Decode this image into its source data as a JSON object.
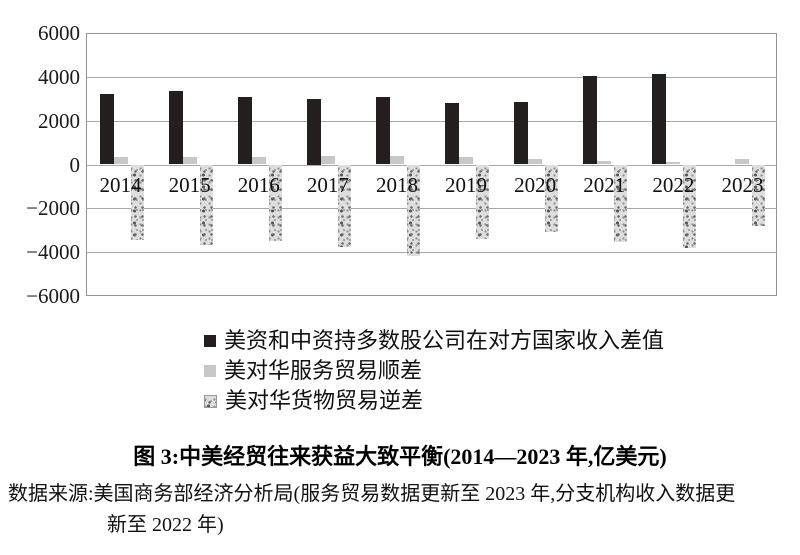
{
  "chart_data": {
    "type": "bar",
    "title": "图 3:中美经贸往来获益大致平衡(2014—2023 年,亿美元)",
    "unit": "亿美元",
    "categories": [
      "2014",
      "2015",
      "2016",
      "2017",
      "2018",
      "2019",
      "2020",
      "2021",
      "2022",
      "2023"
    ],
    "series": [
      {
        "name": "美资和中资持多数股公司在对方国家收入差值",
        "style": "solid-black",
        "color": "#231f1f",
        "values": [
          3200,
          3350,
          3100,
          3000,
          3100,
          2800,
          2850,
          4050,
          4150,
          null
        ]
      },
      {
        "name": "美对华服务贸易顺差",
        "style": "solid-gray",
        "color": "#c7c7c7",
        "values": [
          345,
          333,
          357,
          385,
          400,
          360,
          245,
          170,
          130,
          270
        ]
      },
      {
        "name": "美对华货物贸易逆差",
        "style": "speckled-gray",
        "color": "#dedede",
        "values": [
          -3440,
          -3670,
          -3470,
          -3750,
          -4180,
          -3420,
          -3100,
          -3530,
          -3820,
          -2790
        ]
      }
    ],
    "ylim": [
      -6000,
      6000
    ],
    "ytick_step": 2000,
    "ytick_labels": [
      "6000",
      "4000",
      "2000",
      "0",
      "−2000",
      "−4000",
      "−6000"
    ],
    "grid": true,
    "legend_position": "below-plot"
  },
  "source": {
    "line1": "数据来源:美国商务部经济分析局(服务贸易数据更新至 2023 年,分支机构收入数据更",
    "line2": "新至 2022 年)"
  }
}
